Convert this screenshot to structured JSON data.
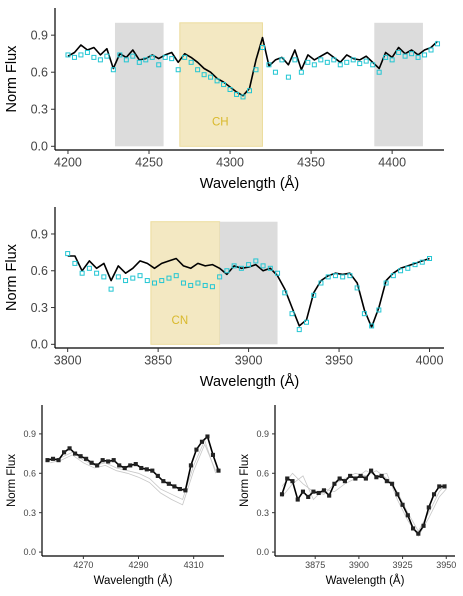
{
  "chart_data": [
    {
      "type": "line",
      "xlabel": "Wavelength (Å)",
      "ylabel": "Norm Flux",
      "xlim": [
        4192,
        4432
      ],
      "ylim": [
        -0.03,
        1.12
      ],
      "xticks": [
        4200,
        4250,
        4300,
        4350,
        4400
      ],
      "yticks": [
        0.0,
        0.3,
        0.6,
        0.9
      ],
      "ytick_labels": [
        "0.0",
        "0.3",
        "0.6",
        "0.9"
      ],
      "shaded_regions": [
        {
          "x0": 4229,
          "x1": 4259,
          "color": "#dcdcdc"
        },
        {
          "x0": 4269,
          "x1": 4320,
          "color": "#f3e8c2",
          "label": "CH",
          "label_x": 4294,
          "label_y": 0.2,
          "label_color": "#d9b92c"
        },
        {
          "x0": 4389,
          "x1": 4419,
          "color": "#dcdcdc"
        }
      ],
      "series": [
        {
          "style": "line",
          "color": "#000000",
          "x": [
            4200,
            4204,
            4208,
            4212,
            4216,
            4220,
            4224,
            4228,
            4232,
            4236,
            4240,
            4244,
            4248,
            4252,
            4256,
            4260,
            4264,
            4268,
            4272,
            4276,
            4280,
            4284,
            4288,
            4292,
            4296,
            4300,
            4304,
            4308,
            4312,
            4316,
            4320,
            4324,
            4328,
            4332,
            4336,
            4340,
            4344,
            4348,
            4352,
            4356,
            4360,
            4364,
            4368,
            4372,
            4376,
            4380,
            4384,
            4388,
            4392,
            4396,
            4400,
            4404,
            4408,
            4412,
            4416,
            4420,
            4424,
            4428
          ],
          "y": [
            0.73,
            0.76,
            0.82,
            0.78,
            0.8,
            0.74,
            0.79,
            0.63,
            0.75,
            0.72,
            0.78,
            0.7,
            0.71,
            0.74,
            0.71,
            0.74,
            0.76,
            0.68,
            0.75,
            0.72,
            0.68,
            0.63,
            0.6,
            0.55,
            0.52,
            0.48,
            0.44,
            0.41,
            0.47,
            0.7,
            0.88,
            0.65,
            0.7,
            0.72,
            0.66,
            0.78,
            0.62,
            0.74,
            0.7,
            0.73,
            0.76,
            0.72,
            0.68,
            0.74,
            0.71,
            0.7,
            0.73,
            0.68,
            0.63,
            0.76,
            0.72,
            0.8,
            0.75,
            0.78,
            0.74,
            0.78,
            0.8,
            0.85
          ]
        },
        {
          "style": "markers",
          "color": "#22c6d3",
          "x": [
            4200,
            4204,
            4208,
            4212,
            4216,
            4220,
            4224,
            4228,
            4232,
            4236,
            4240,
            4244,
            4248,
            4252,
            4256,
            4260,
            4264,
            4268,
            4272,
            4276,
            4280,
            4284,
            4288,
            4292,
            4296,
            4300,
            4304,
            4308,
            4312,
            4316,
            4320,
            4324,
            4328,
            4332,
            4336,
            4340,
            4344,
            4348,
            4352,
            4356,
            4360,
            4364,
            4368,
            4372,
            4376,
            4380,
            4384,
            4388,
            4392,
            4396,
            4400,
            4404,
            4408,
            4412,
            4416,
            4420,
            4424,
            4428
          ],
          "y": [
            0.74,
            0.72,
            0.74,
            0.76,
            0.72,
            0.7,
            0.73,
            0.62,
            0.74,
            0.7,
            0.73,
            0.68,
            0.7,
            0.72,
            0.66,
            0.72,
            0.71,
            0.62,
            0.72,
            0.68,
            0.62,
            0.58,
            0.56,
            0.53,
            0.5,
            0.46,
            0.42,
            0.4,
            0.45,
            0.62,
            0.8,
            0.66,
            0.6,
            0.7,
            0.56,
            0.7,
            0.6,
            0.68,
            0.66,
            0.7,
            0.68,
            0.7,
            0.66,
            0.68,
            0.7,
            0.67,
            0.69,
            0.66,
            0.6,
            0.72,
            0.7,
            0.76,
            0.73,
            0.75,
            0.72,
            0.74,
            0.78,
            0.83
          ]
        }
      ]
    },
    {
      "type": "line",
      "xlabel": "Wavelength (Å)",
      "ylabel": "Norm Flux",
      "xlim": [
        3793,
        4008
      ],
      "ylim": [
        -0.03,
        1.12
      ],
      "xticks": [
        3800,
        3850,
        3900,
        3950,
        4000
      ],
      "yticks": [
        0.0,
        0.3,
        0.6,
        0.9
      ],
      "ytick_labels": [
        "0.0",
        "0.3",
        "0.6",
        "0.9"
      ],
      "shaded_regions": [
        {
          "x0": 3846,
          "x1": 3884,
          "color": "#f3e8c2",
          "label": "CN",
          "label_x": 3862,
          "label_y": 0.2,
          "label_color": "#d9b92c"
        },
        {
          "x0": 3884,
          "x1": 3916,
          "color": "#dcdcdc"
        }
      ],
      "series": [
        {
          "style": "line",
          "color": "#000000",
          "x": [
            3800,
            3804,
            3808,
            3812,
            3816,
            3820,
            3824,
            3828,
            3832,
            3836,
            3840,
            3844,
            3848,
            3852,
            3856,
            3860,
            3864,
            3868,
            3872,
            3876,
            3880,
            3884,
            3888,
            3892,
            3896,
            3900,
            3904,
            3908,
            3912,
            3916,
            3920,
            3924,
            3928,
            3932,
            3936,
            3940,
            3944,
            3948,
            3952,
            3956,
            3960,
            3964,
            3968,
            3972,
            3976,
            3980,
            3984,
            3988,
            3992,
            3996,
            4000
          ],
          "y": [
            0.72,
            0.72,
            0.6,
            0.68,
            0.62,
            0.66,
            0.52,
            0.64,
            0.58,
            0.62,
            0.68,
            0.66,
            0.62,
            0.66,
            0.68,
            0.7,
            0.64,
            0.62,
            0.66,
            0.64,
            0.65,
            0.62,
            0.57,
            0.64,
            0.62,
            0.63,
            0.65,
            0.6,
            0.62,
            0.56,
            0.45,
            0.3,
            0.15,
            0.2,
            0.42,
            0.52,
            0.56,
            0.58,
            0.57,
            0.58,
            0.5,
            0.28,
            0.14,
            0.3,
            0.52,
            0.58,
            0.62,
            0.64,
            0.66,
            0.68,
            0.7
          ]
        },
        {
          "style": "markers",
          "color": "#22c6d3",
          "x": [
            3800,
            3804,
            3808,
            3812,
            3816,
            3820,
            3824,
            3828,
            3832,
            3836,
            3840,
            3844,
            3848,
            3852,
            3856,
            3860,
            3864,
            3868,
            3872,
            3876,
            3880,
            3884,
            3888,
            3892,
            3896,
            3900,
            3904,
            3908,
            3912,
            3916,
            3920,
            3924,
            3928,
            3932,
            3936,
            3940,
            3944,
            3948,
            3952,
            3956,
            3960,
            3964,
            3968,
            3972,
            3976,
            3980,
            3984,
            3988,
            3992,
            3996,
            4000
          ],
          "y": [
            0.74,
            0.66,
            0.58,
            0.62,
            0.58,
            0.55,
            0.45,
            0.55,
            0.52,
            0.54,
            0.56,
            0.52,
            0.5,
            0.52,
            0.54,
            0.56,
            0.5,
            0.48,
            0.5,
            0.48,
            0.47,
            0.55,
            0.6,
            0.64,
            0.62,
            0.65,
            0.68,
            0.64,
            0.62,
            0.58,
            0.42,
            0.25,
            0.12,
            0.18,
            0.4,
            0.5,
            0.55,
            0.56,
            0.55,
            0.56,
            0.46,
            0.25,
            0.15,
            0.28,
            0.5,
            0.56,
            0.6,
            0.62,
            0.65,
            0.67,
            0.7
          ]
        }
      ]
    },
    {
      "type": "line",
      "xlabel": "Wavelength (Å)",
      "ylabel": "Norm Flux",
      "xlim": [
        4255,
        4321
      ],
      "ylim": [
        -0.03,
        1.12
      ],
      "xticks": [
        4270,
        4290,
        4310
      ],
      "yticks": [
        0.0,
        0.3,
        0.6,
        0.9
      ],
      "ytick_labels": [
        "0.0",
        "0.3",
        "0.6",
        "0.9"
      ],
      "series": [
        {
          "style": "faint",
          "color": "#c8c8c8",
          "x": [
            4258,
            4262,
            4266,
            4270,
            4274,
            4278,
            4282,
            4286,
            4290,
            4294,
            4298,
            4302,
            4306,
            4310,
            4314,
            4318
          ],
          "y": [
            0.7,
            0.72,
            0.76,
            0.7,
            0.66,
            0.68,
            0.64,
            0.62,
            0.6,
            0.56,
            0.48,
            0.44,
            0.4,
            0.66,
            0.85,
            0.6
          ]
        },
        {
          "style": "faint",
          "color": "#c8c8c8",
          "x": [
            4258,
            4262,
            4266,
            4270,
            4274,
            4278,
            4282,
            4286,
            4290,
            4294,
            4298,
            4302,
            4306,
            4310,
            4314,
            4318
          ],
          "y": [
            0.68,
            0.7,
            0.74,
            0.68,
            0.64,
            0.66,
            0.62,
            0.6,
            0.57,
            0.53,
            0.45,
            0.4,
            0.36,
            0.62,
            0.82,
            0.62
          ]
        },
        {
          "style": "line",
          "color": "#000000",
          "x": [
            4257,
            4259,
            4261,
            4263,
            4265,
            4267,
            4269,
            4271,
            4273,
            4275,
            4277,
            4279,
            4281,
            4283,
            4285,
            4287,
            4289,
            4291,
            4293,
            4295,
            4297,
            4299,
            4301,
            4303,
            4305,
            4307,
            4309,
            4311,
            4313,
            4315,
            4317,
            4319
          ],
          "y": [
            0.7,
            0.71,
            0.7,
            0.76,
            0.79,
            0.75,
            0.73,
            0.71,
            0.68,
            0.66,
            0.7,
            0.69,
            0.7,
            0.66,
            0.64,
            0.66,
            0.67,
            0.64,
            0.63,
            0.62,
            0.58,
            0.54,
            0.52,
            0.5,
            0.48,
            0.47,
            0.66,
            0.78,
            0.84,
            0.88,
            0.74,
            0.62
          ]
        },
        {
          "style": "squares",
          "color": "#222222",
          "x": [
            4257,
            4259,
            4261,
            4263,
            4265,
            4267,
            4269,
            4271,
            4273,
            4275,
            4277,
            4279,
            4281,
            4283,
            4285,
            4287,
            4289,
            4291,
            4293,
            4295,
            4297,
            4299,
            4301,
            4303,
            4305,
            4307,
            4309,
            4311,
            4313,
            4315,
            4317,
            4319
          ],
          "y": [
            0.7,
            0.71,
            0.7,
            0.76,
            0.79,
            0.75,
            0.73,
            0.71,
            0.68,
            0.66,
            0.7,
            0.69,
            0.7,
            0.66,
            0.64,
            0.66,
            0.67,
            0.64,
            0.63,
            0.62,
            0.58,
            0.54,
            0.52,
            0.5,
            0.48,
            0.47,
            0.66,
            0.78,
            0.84,
            0.88,
            0.74,
            0.62
          ]
        }
      ]
    },
    {
      "type": "line",
      "xlabel": "Wavelength (Å)",
      "ylabel": "Norm Flux",
      "xlim": [
        3852,
        3955
      ],
      "ylim": [
        -0.03,
        1.12
      ],
      "xticks": [
        3875,
        3900,
        3925,
        3950
      ],
      "yticks": [
        0.0,
        0.3,
        0.6,
        0.9
      ],
      "ytick_labels": [
        "0.0",
        "0.3",
        "0.6",
        "0.9"
      ],
      "series": [
        {
          "style": "faint",
          "color": "#c8c8c8",
          "x": [
            3856,
            3862,
            3868,
            3874,
            3880,
            3886,
            3892,
            3898,
            3904,
            3910,
            3916,
            3922,
            3928,
            3934,
            3940,
            3946,
            3950
          ],
          "y": [
            0.5,
            0.6,
            0.52,
            0.46,
            0.44,
            0.52,
            0.56,
            0.6,
            0.58,
            0.62,
            0.56,
            0.46,
            0.3,
            0.16,
            0.3,
            0.46,
            0.52
          ]
        },
        {
          "style": "faint",
          "color": "#c8c8c8",
          "x": [
            3856,
            3862,
            3868,
            3874,
            3880,
            3886,
            3892,
            3898,
            3904,
            3910,
            3916,
            3922,
            3928,
            3934,
            3940,
            3946,
            3950
          ],
          "y": [
            0.42,
            0.52,
            0.58,
            0.4,
            0.48,
            0.46,
            0.52,
            0.56,
            0.62,
            0.58,
            0.6,
            0.4,
            0.24,
            0.12,
            0.26,
            0.42,
            0.48
          ]
        },
        {
          "style": "line",
          "color": "#000000",
          "x": [
            3856,
            3859,
            3862,
            3865,
            3868,
            3871,
            3874,
            3877,
            3880,
            3883,
            3886,
            3889,
            3892,
            3895,
            3898,
            3901,
            3904,
            3907,
            3910,
            3913,
            3916,
            3919,
            3922,
            3925,
            3928,
            3931,
            3934,
            3937,
            3940,
            3943,
            3946,
            3949
          ],
          "y": [
            0.44,
            0.56,
            0.54,
            0.4,
            0.46,
            0.42,
            0.46,
            0.45,
            0.47,
            0.43,
            0.52,
            0.56,
            0.54,
            0.58,
            0.56,
            0.58,
            0.56,
            0.62,
            0.57,
            0.58,
            0.54,
            0.52,
            0.44,
            0.36,
            0.28,
            0.18,
            0.14,
            0.2,
            0.34,
            0.44,
            0.5,
            0.5
          ]
        },
        {
          "style": "squares",
          "color": "#222222",
          "x": [
            3856,
            3859,
            3862,
            3865,
            3868,
            3871,
            3874,
            3877,
            3880,
            3883,
            3886,
            3889,
            3892,
            3895,
            3898,
            3901,
            3904,
            3907,
            3910,
            3913,
            3916,
            3919,
            3922,
            3925,
            3928,
            3931,
            3934,
            3937,
            3940,
            3943,
            3946,
            3949
          ],
          "y": [
            0.44,
            0.56,
            0.54,
            0.4,
            0.46,
            0.42,
            0.46,
            0.45,
            0.47,
            0.43,
            0.52,
            0.56,
            0.54,
            0.58,
            0.56,
            0.58,
            0.56,
            0.62,
            0.57,
            0.58,
            0.54,
            0.52,
            0.44,
            0.36,
            0.28,
            0.18,
            0.14,
            0.2,
            0.34,
            0.44,
            0.5,
            0.5
          ]
        }
      ]
    }
  ]
}
